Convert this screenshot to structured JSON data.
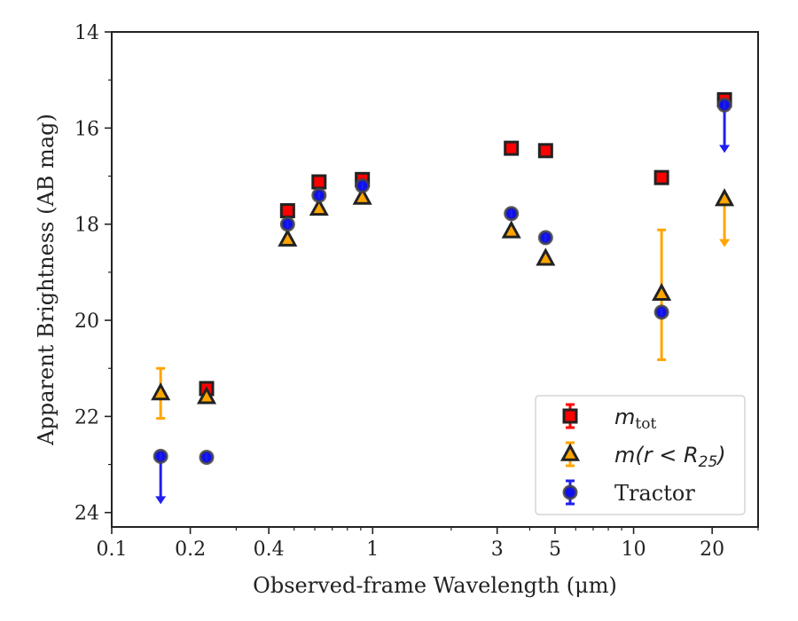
{
  "chart_data": {
    "type": "scatter",
    "xlabel": "Observed-frame Wavelength (μm)",
    "ylabel": "Apparent Brightness (AB mag)",
    "xscale": "log",
    "xlim": [
      0.1,
      30
    ],
    "ylim": [
      24.3,
      14
    ],
    "y_inverted": true,
    "x_ticks": [
      0.1,
      0.2,
      0.4,
      1,
      3,
      5,
      10,
      20
    ],
    "x_tick_labels": [
      "0.1",
      "0.2",
      "0.4",
      "1",
      "3",
      "5",
      "10",
      "20"
    ],
    "y_ticks": [
      14,
      16,
      18,
      20,
      22,
      24
    ],
    "y_tick_labels": [
      "14",
      "16",
      "18",
      "20",
      "22",
      "24"
    ],
    "legend_position": "lower-right",
    "series": [
      {
        "name": "m_tot",
        "legend_label": "m",
        "legend_sub": "tot",
        "marker": "square",
        "color": "#ff0000",
        "edge": "#222222",
        "errcolor": "#ff0000",
        "points": [
          {
            "x": 0.231,
            "y": 21.42
          },
          {
            "x": 0.472,
            "y": 17.72
          },
          {
            "x": 0.623,
            "y": 17.12
          },
          {
            "x": 0.913,
            "y": 17.07
          },
          {
            "x": 3.4,
            "y": 16.42
          },
          {
            "x": 4.6,
            "y": 16.47
          },
          {
            "x": 12.8,
            "y": 17.03
          },
          {
            "x": 22.3,
            "y": 15.41
          }
        ]
      },
      {
        "name": "m(r<R25)",
        "legend_label": "m(r < R",
        "legend_sub": "25",
        "legend_close": ")",
        "marker": "triangle",
        "color": "#ffa500",
        "edge": "#222222",
        "errcolor": "#ffa500",
        "points": [
          {
            "x": 0.154,
            "y": 21.52,
            "yerr": 0.52
          },
          {
            "x": 0.231,
            "y": 21.6
          },
          {
            "x": 0.472,
            "y": 18.32
          },
          {
            "x": 0.623,
            "y": 17.68
          },
          {
            "x": 0.913,
            "y": 17.45
          },
          {
            "x": 3.4,
            "y": 18.15
          },
          {
            "x": 4.6,
            "y": 18.72
          },
          {
            "x": 12.8,
            "y": 19.45,
            "yerr_low": 1.37,
            "yerr_high": 1.33
          },
          {
            "x": 22.3,
            "y": 17.48,
            "upper_limit": true
          }
        ]
      },
      {
        "name": "Tractor",
        "legend_label": "Tractor",
        "marker": "circle",
        "color": "#1010ee",
        "edge": "#444444",
        "errcolor": "#2020ee",
        "points": [
          {
            "x": 0.154,
            "y": 22.83,
            "upper_limit": true
          },
          {
            "x": 0.231,
            "y": 22.85
          },
          {
            "x": 0.472,
            "y": 18.0
          },
          {
            "x": 0.623,
            "y": 17.4
          },
          {
            "x": 0.913,
            "y": 17.2
          },
          {
            "x": 3.4,
            "y": 17.78
          },
          {
            "x": 4.6,
            "y": 18.28
          },
          {
            "x": 12.8,
            "y": 19.83
          },
          {
            "x": 22.3,
            "y": 15.52,
            "upper_limit": true
          }
        ]
      }
    ]
  }
}
